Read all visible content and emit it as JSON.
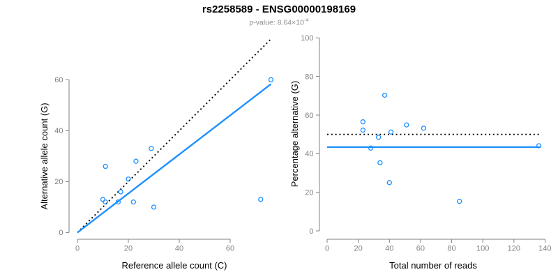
{
  "header": {
    "title": "rs2258589 - ENSG00000198169",
    "subtitle_main": "p-value: 8.64×10",
    "subtitle_exponent": "-4"
  },
  "colors": {
    "points": "#1E90FF",
    "fit_line": "#1E90FF",
    "reference_line": "#000000",
    "axis": "#808080",
    "tick_labels": "#7f7f7f",
    "axis_titles": "#000000",
    "subtitle": "#8e8e8e"
  },
  "chart_data": [
    {
      "type": "scatter",
      "panel": "left",
      "xlabel": "Reference allele count (C)",
      "ylabel": "Alternative allele count (G)",
      "xticks": [
        0,
        20,
        40,
        60
      ],
      "yticks": [
        0,
        20,
        40,
        60
      ],
      "xlim": [
        0,
        77
      ],
      "ylim": [
        0,
        77
      ],
      "grid": false,
      "points": [
        [
          10,
          13
        ],
        [
          11,
          12
        ],
        [
          11,
          26
        ],
        [
          16,
          12
        ],
        [
          17,
          16
        ],
        [
          20,
          21
        ],
        [
          22,
          12
        ],
        [
          23,
          28
        ],
        [
          29,
          33
        ],
        [
          30,
          10
        ],
        [
          72,
          13
        ],
        [
          76,
          60
        ]
      ],
      "lines": [
        {
          "name": "identity-line",
          "style": "dotted",
          "color": "#000000",
          "x1": 0,
          "y1": 0,
          "x2": 76,
          "y2": 76
        },
        {
          "name": "fit-line",
          "style": "solid",
          "color": "#1E90FF",
          "x1": 0,
          "y1": 0,
          "x2": 76,
          "y2": 58.3
        }
      ]
    },
    {
      "type": "scatter",
      "panel": "right",
      "xlabel": "Total number of reads",
      "ylabel": "Percentage alternative (G)",
      "xticks": [
        0,
        20,
        40,
        60,
        80,
        100,
        120,
        140
      ],
      "yticks": [
        0,
        20,
        40,
        60,
        80,
        100
      ],
      "xlim": [
        0,
        140
      ],
      "ylim": [
        0,
        100
      ],
      "grid": false,
      "points": [
        [
          23,
          56.5
        ],
        [
          23,
          52.2
        ],
        [
          28,
          42.9
        ],
        [
          33,
          48.5
        ],
        [
          34,
          35.3
        ],
        [
          37,
          70.3
        ],
        [
          40,
          25.0
        ],
        [
          41,
          51.2
        ],
        [
          51,
          54.9
        ],
        [
          62,
          53.2
        ],
        [
          85,
          15.3
        ],
        [
          136,
          44.1
        ]
      ],
      "lines": [
        {
          "name": "expected-50pct-line",
          "style": "dotted",
          "color": "#000000",
          "x1": 0,
          "y1": 50,
          "x2": 137,
          "y2": 50
        },
        {
          "name": "fit-line",
          "style": "solid",
          "color": "#1E90FF",
          "x1": 0,
          "y1": 43.4,
          "x2": 137,
          "y2": 43.4
        }
      ]
    }
  ]
}
